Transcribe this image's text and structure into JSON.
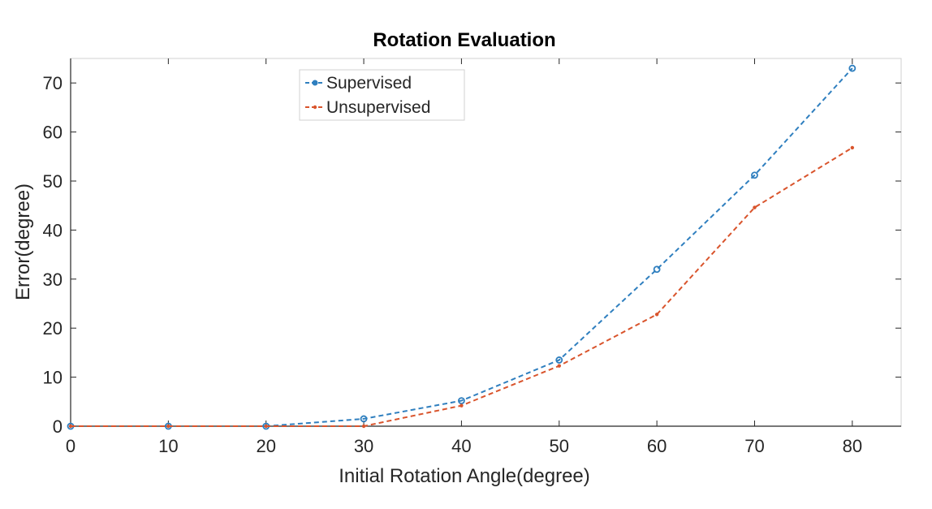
{
  "chart_data": {
    "type": "line",
    "title": "Rotation Evaluation",
    "xlabel": "Initial Rotation Angle(degree)",
    "ylabel": "Error(degree)",
    "x": [
      0,
      10,
      20,
      30,
      40,
      50,
      60,
      70,
      80
    ],
    "xlim": [
      0,
      85
    ],
    "ylim": [
      0,
      75
    ],
    "xticks": [
      0,
      10,
      20,
      30,
      40,
      50,
      60,
      70,
      80
    ],
    "yticks": [
      0,
      10,
      20,
      30,
      40,
      50,
      60,
      70
    ],
    "grid": false,
    "legend_position": "top-center",
    "series": [
      {
        "name": "Supervised",
        "values": [
          0,
          0,
          0,
          1.5,
          5.2,
          13.5,
          32,
          51.2,
          73
        ],
        "color": "#2f7fbf",
        "marker": "circle",
        "line_style": "dashed"
      },
      {
        "name": "Unsupervised",
        "values": [
          0,
          0,
          0,
          0,
          4.2,
          12.3,
          22.8,
          44.6,
          56.8
        ],
        "color": "#d9542c",
        "marker": "dot",
        "line_style": "dashed"
      }
    ]
  }
}
